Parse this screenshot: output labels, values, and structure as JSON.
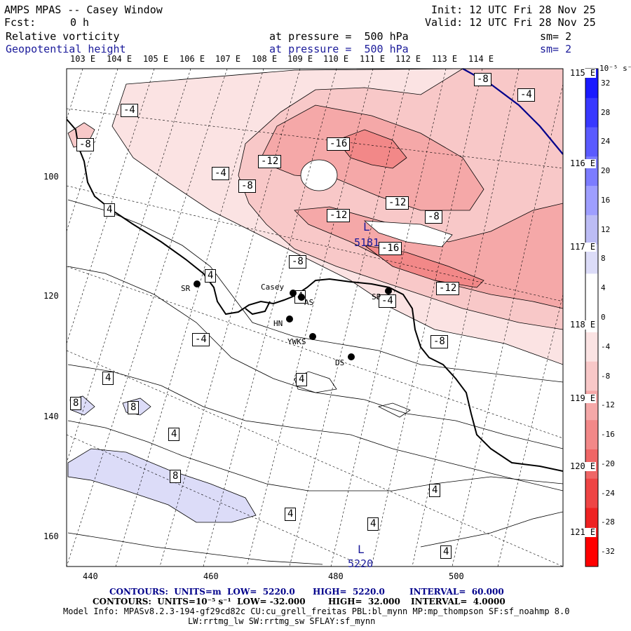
{
  "header": {
    "app": "AMPS MPAS -- Casey Window",
    "fcst_label": "Fcst:",
    "fcst_value": "0 h",
    "init": "Init: 12 UTC Fri 28 Nov 25",
    "valid": "Valid: 12 UTC Fri 28 Nov 25",
    "field1": {
      "name": "Relative vorticity",
      "level": "at pressure =  500 hPa",
      "sm": "sm= 2"
    },
    "field2": {
      "name": "Geopotential height",
      "level": "at pressure =  500 hPa",
      "sm": "sm= 2"
    }
  },
  "axes": {
    "top_lon": [
      "103 E",
      "104 E",
      "105 E",
      "106 E",
      "107 E",
      "108 E",
      "109 E",
      "110 E",
      "111 E",
      "112 E",
      "113 E",
      "114 E"
    ],
    "right_lon": [
      "115 E",
      "116 E",
      "117 E",
      "118 E",
      "119 E",
      "120 E",
      "121 E"
    ],
    "left_ticks": [
      "100",
      "120",
      "140",
      "160"
    ],
    "bottom_ticks": [
      "440",
      "460",
      "480",
      "500"
    ]
  },
  "colorbar": {
    "unit": "10⁻⁵ s⁻¹",
    "labels": [
      "32",
      "28",
      "24",
      "20",
      "16",
      "12",
      "8",
      "4",
      "0",
      "-4",
      "-8",
      "-12",
      "-16",
      "-20",
      "-24",
      "-28",
      "-32"
    ],
    "colors": [
      "#1a1aff",
      "#3838ff",
      "#5a5aff",
      "#7c7cff",
      "#9e9eff",
      "#bcbcf5",
      "#dcdcf8",
      "#ffffff",
      "#ffffff",
      "#fbe3e3",
      "#f8c8c8",
      "#f5a8a8",
      "#f28888",
      "#ef6666",
      "#ee4444",
      "#ee2222",
      "#ff0000"
    ]
  },
  "contour_labels": {
    "values": [
      "-4",
      "-8",
      "-4",
      "-12",
      "-16",
      "-4",
      "-8",
      "4",
      "-12",
      "-12",
      "-8",
      "-16",
      "-8",
      "4",
      "4",
      "-4",
      "-12",
      "-8",
      "-4",
      "4",
      "4",
      "8",
      "8",
      "4",
      "8",
      "4",
      "4",
      "4",
      "4",
      "-8"
    ]
  },
  "stations": [
    {
      "name": "SR"
    },
    {
      "name": "Casey"
    },
    {
      "name": "AS"
    },
    {
      "name": "HN"
    },
    {
      "name": "YWKS"
    },
    {
      "name": "DS"
    },
    {
      "name": "SP"
    }
  ],
  "lows": [
    {
      "mark": "L",
      "value": "5181"
    },
    {
      "mark": "L",
      "value": "5220"
    }
  ],
  "footer": {
    "line1_a": "CONTOURS:  UNITS=m  LOW=  5220.0",
    "line1_b": "HIGH=  5220.0",
    "line1_c": "INTERVAL=  60.000",
    "line2_a": "CONTOURS:  UNITS=10⁻⁵ s⁻¹  LOW= -32.000",
    "line2_b": "HIGH=  32.000",
    "line2_c": "INTERVAL=  4.0000",
    "line3": "Model Info: MPASv8.2.3-194-gf29cd82c CU:cu_grell_freitas PBL:bl_mynn MP:mp_thompson SF:sf_noahmp 8.0",
    "line4": "LW:rrtmg_lw SW:rrtmg_sw SFLAY:sf_mynn"
  }
}
